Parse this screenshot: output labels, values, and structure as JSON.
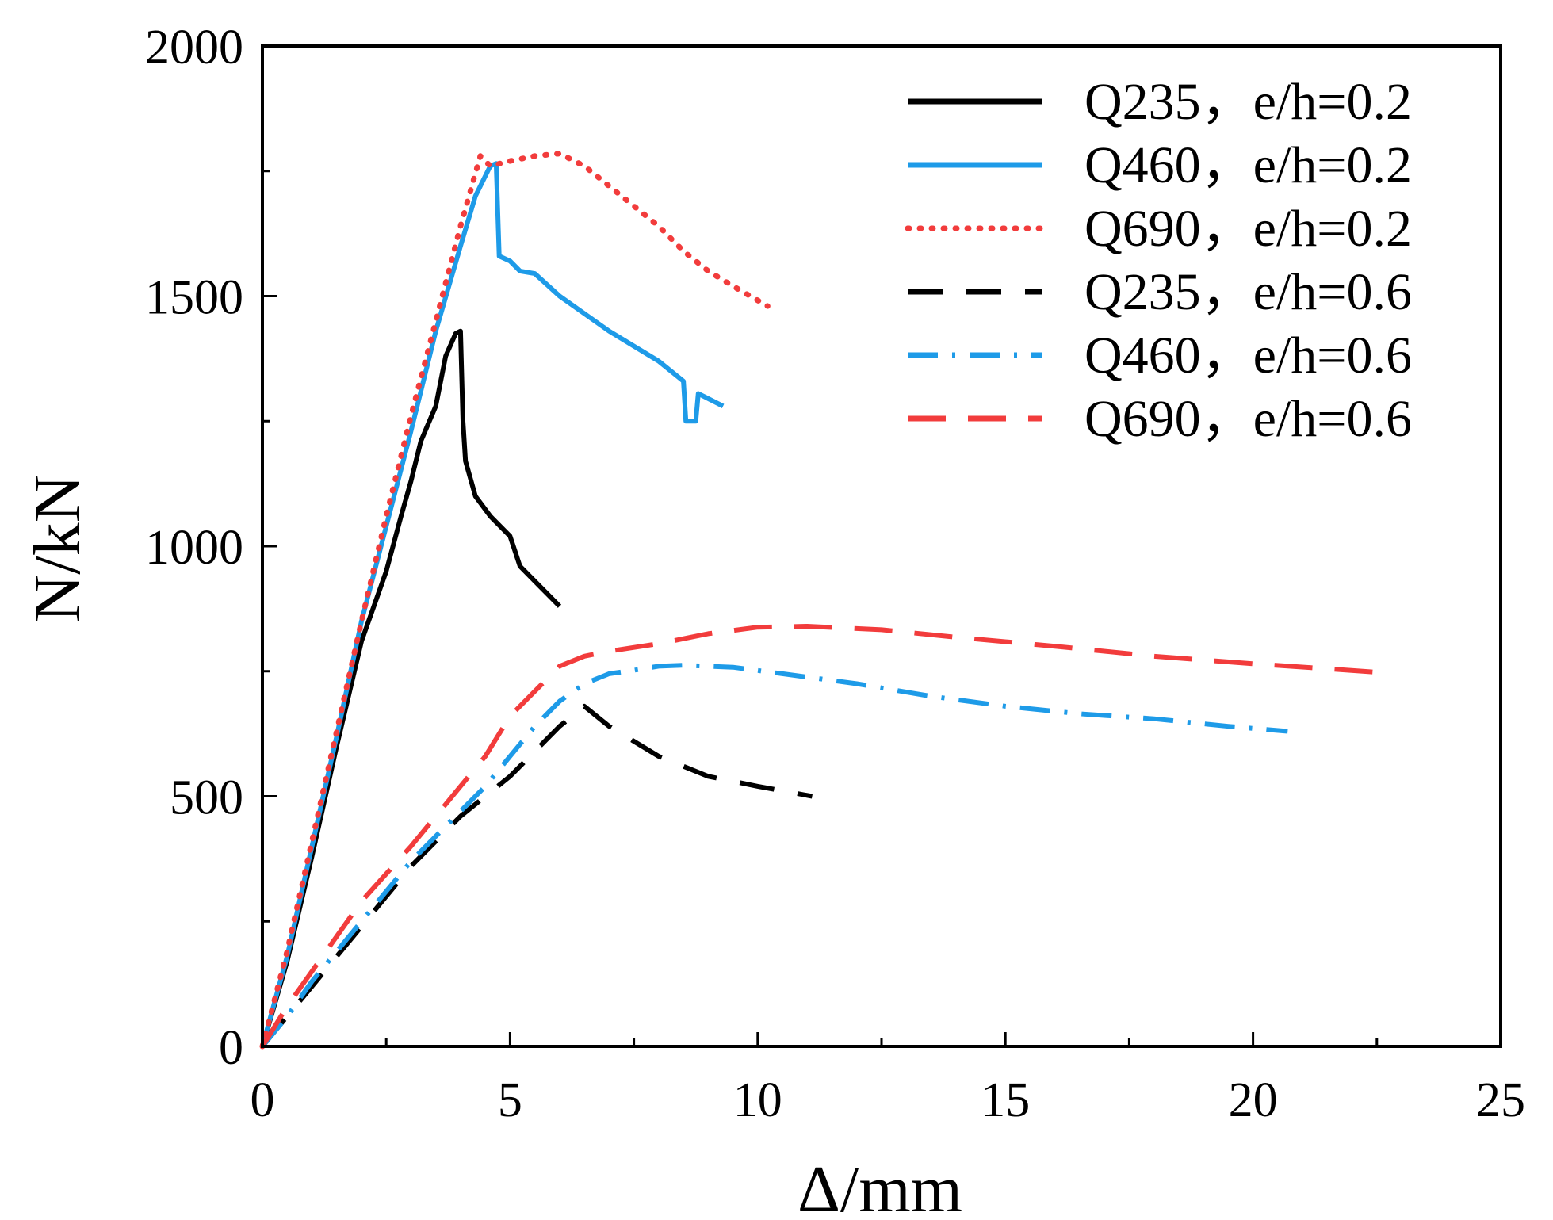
{
  "chart_data": {
    "type": "line",
    "title": "",
    "xlabel": "Δ/mm",
    "ylabel": "N/kN",
    "xlim": [
      0,
      25
    ],
    "ylim": [
      0,
      2000
    ],
    "xticks": [
      0,
      5,
      10,
      15,
      20,
      25
    ],
    "yticks": [
      0,
      500,
      1000,
      1500,
      2000
    ],
    "xtick_labels": [
      "0",
      "5",
      "10",
      "15",
      "20",
      "25"
    ],
    "ytick_labels": [
      "0",
      "500",
      "1000",
      "1500",
      "2000"
    ],
    "legend_position": "top-right",
    "series": [
      {
        "name": "Q235，e/h=0.2",
        "color": "#000000",
        "style": "solid",
        "points": [
          [
            0,
            0
          ],
          [
            0.5,
            170
          ],
          [
            1.0,
            380
          ],
          [
            1.5,
            600
          ],
          [
            2.0,
            810
          ],
          [
            2.5,
            950
          ],
          [
            2.8,
            1060
          ],
          [
            3.0,
            1130
          ],
          [
            3.2,
            1210
          ],
          [
            3.5,
            1280
          ],
          [
            3.7,
            1380
          ],
          [
            3.9,
            1425
          ],
          [
            4.0,
            1430
          ],
          [
            4.05,
            1250
          ],
          [
            4.1,
            1170
          ],
          [
            4.3,
            1100
          ],
          [
            4.6,
            1060
          ],
          [
            5.0,
            1020
          ],
          [
            5.2,
            960
          ],
          [
            5.6,
            920
          ],
          [
            6.0,
            880
          ]
        ]
      },
      {
        "name": "Q460，e/h=0.2",
        "color": "#1e9be8",
        "style": "solid",
        "points": [
          [
            0,
            0
          ],
          [
            0.5,
            180
          ],
          [
            1.0,
            400
          ],
          [
            1.5,
            620
          ],
          [
            2.0,
            850
          ],
          [
            2.5,
            1040
          ],
          [
            3.0,
            1230
          ],
          [
            3.5,
            1430
          ],
          [
            4.0,
            1600
          ],
          [
            4.3,
            1700
          ],
          [
            4.6,
            1760
          ],
          [
            4.72,
            1765
          ],
          [
            4.78,
            1580
          ],
          [
            5.0,
            1570
          ],
          [
            5.2,
            1550
          ],
          [
            5.5,
            1545
          ],
          [
            6.0,
            1500
          ],
          [
            7.0,
            1430
          ],
          [
            8.0,
            1370
          ],
          [
            8.5,
            1330
          ],
          [
            8.55,
            1250
          ],
          [
            8.75,
            1250
          ],
          [
            8.8,
            1305
          ],
          [
            9.3,
            1280
          ]
        ]
      },
      {
        "name": "Q690，e/h=0.2",
        "color": "#f23c3c",
        "style": "dotted",
        "points": [
          [
            0,
            0
          ],
          [
            0.5,
            190
          ],
          [
            1.0,
            410
          ],
          [
            1.5,
            630
          ],
          [
            2.0,
            850
          ],
          [
            2.5,
            1060
          ],
          [
            3.0,
            1260
          ],
          [
            3.5,
            1450
          ],
          [
            4.0,
            1640
          ],
          [
            4.4,
            1780
          ],
          [
            4.6,
            1760
          ],
          [
            5.0,
            1770
          ],
          [
            5.5,
            1780
          ],
          [
            6.0,
            1785
          ],
          [
            6.5,
            1760
          ],
          [
            7.0,
            1720
          ],
          [
            7.5,
            1680
          ],
          [
            8.0,
            1640
          ],
          [
            8.5,
            1590
          ],
          [
            9.0,
            1550
          ],
          [
            9.5,
            1520
          ],
          [
            10.2,
            1480
          ]
        ]
      },
      {
        "name": "Q235，e/h=0.6",
        "color": "#000000",
        "style": "dashed",
        "points": [
          [
            0,
            0
          ],
          [
            0.5,
            60
          ],
          [
            1.0,
            120
          ],
          [
            2.0,
            240
          ],
          [
            3.0,
            360
          ],
          [
            4.0,
            460
          ],
          [
            5.0,
            540
          ],
          [
            6.0,
            640
          ],
          [
            6.5,
            680
          ],
          [
            7.0,
            640
          ],
          [
            8.0,
            580
          ],
          [
            9.0,
            540
          ],
          [
            10.0,
            520
          ],
          [
            11.1,
            500
          ]
        ]
      },
      {
        "name": "Q460，e/h=0.6",
        "color": "#1e9be8",
        "style": "dashdot",
        "points": [
          [
            0,
            0
          ],
          [
            0.5,
            60
          ],
          [
            1.0,
            130
          ],
          [
            2.0,
            250
          ],
          [
            3.0,
            370
          ],
          [
            4.0,
            470
          ],
          [
            4.5,
            520
          ],
          [
            5.0,
            580
          ],
          [
            5.5,
            640
          ],
          [
            6.0,
            690
          ],
          [
            6.5,
            725
          ],
          [
            7.0,
            745
          ],
          [
            7.5,
            752
          ],
          [
            8.0,
            760
          ],
          [
            8.5,
            762
          ],
          [
            9.5,
            758
          ],
          [
            10.5,
            745
          ],
          [
            12.0,
            725
          ],
          [
            13.5,
            700
          ],
          [
            15.0,
            680
          ],
          [
            16.5,
            665
          ],
          [
            18.0,
            655
          ],
          [
            19.5,
            640
          ],
          [
            20.7,
            630
          ]
        ]
      },
      {
        "name": "Q690，e/h=0.6",
        "color": "#f23c3c",
        "style": "longdash",
        "points": [
          [
            0,
            0
          ],
          [
            0.5,
            80
          ],
          [
            1.0,
            150
          ],
          [
            2.0,
            290
          ],
          [
            3.0,
            400
          ],
          [
            4.0,
            520
          ],
          [
            4.5,
            580
          ],
          [
            5.0,
            660
          ],
          [
            5.5,
            710
          ],
          [
            6.0,
            760
          ],
          [
            6.5,
            780
          ],
          [
            7.0,
            790
          ],
          [
            8.0,
            805
          ],
          [
            9.0,
            825
          ],
          [
            10.0,
            838
          ],
          [
            11.0,
            840
          ],
          [
            12.5,
            833
          ],
          [
            14.0,
            818
          ],
          [
            16.0,
            800
          ],
          [
            18.0,
            780
          ],
          [
            20.0,
            765
          ],
          [
            21.5,
            755
          ],
          [
            22.5,
            748
          ]
        ]
      }
    ]
  }
}
